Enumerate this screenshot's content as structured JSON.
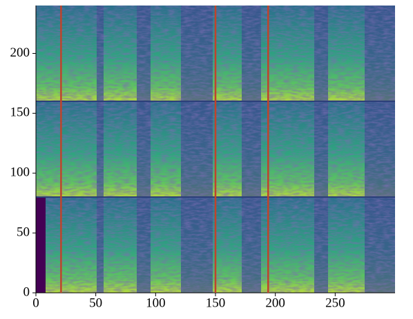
{
  "chart_data": {
    "type": "heatmap",
    "xlim": [
      0,
      300
    ],
    "ylim": [
      0,
      240
    ],
    "xticks": [
      0,
      50,
      100,
      150,
      200,
      250
    ],
    "yticks": [
      0,
      50,
      100,
      150,
      200
    ],
    "vlines": [
      21,
      150,
      194
    ],
    "vline_color": "#c0432b"
  }
}
